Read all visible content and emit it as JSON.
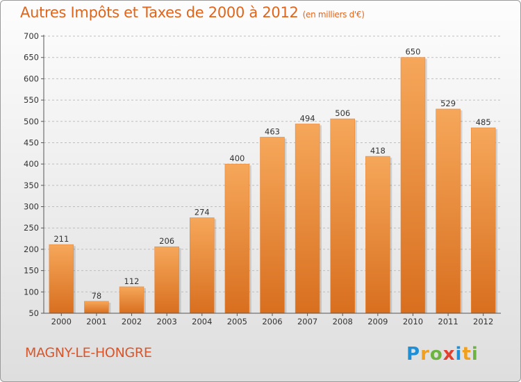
{
  "title": "Autres Impôts et Taxes de 2000 à 2012",
  "subtitle": "(en milliers d'€)",
  "town": "MAGNY-LE-HONGRE",
  "logo_text": "Proxiti",
  "colors": {
    "title": "#e0651c",
    "bar_light": "#f6a75a",
    "bar_dark": "#d86f1f",
    "grid": "#bdbdbd",
    "town": "#d9552a"
  },
  "chart_data": {
    "type": "bar",
    "title": "Autres Impôts et Taxes de 2000 à 2012",
    "subtitle": "(en milliers d'€)",
    "xlabel": "",
    "ylabel": "",
    "categories": [
      "2000",
      "2001",
      "2002",
      "2003",
      "2004",
      "2005",
      "2006",
      "2007",
      "2008",
      "2009",
      "2010",
      "2011",
      "2012"
    ],
    "values": [
      211,
      78,
      112,
      206,
      274,
      400,
      463,
      494,
      506,
      418,
      650,
      529,
      485
    ],
    "ylim": [
      50,
      700
    ],
    "yticks": [
      50,
      100,
      150,
      200,
      250,
      300,
      350,
      400,
      450,
      500,
      550,
      600,
      650,
      700
    ],
    "grid": true,
    "grid_style": "dashed-horizontal",
    "data_labels": true,
    "legend": "none"
  }
}
